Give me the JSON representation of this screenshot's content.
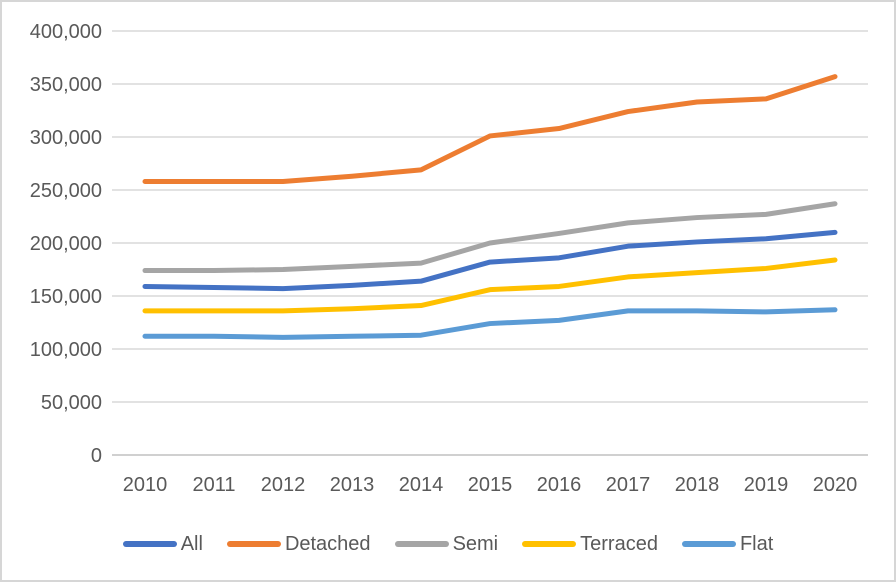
{
  "chart_data": {
    "type": "line",
    "title": "",
    "xlabel": "",
    "ylabel": "",
    "x_labels": [
      "2010",
      "2011",
      "2012",
      "2013",
      "2014",
      "2015",
      "2016",
      "2017",
      "2018",
      "2019",
      "2020"
    ],
    "series": [
      {
        "name": "All",
        "color": "#4472C4",
        "values": [
          159000,
          158000,
          157000,
          160000,
          164000,
          182000,
          186000,
          197000,
          201000,
          204000,
          210000
        ]
      },
      {
        "name": "Detached",
        "color": "#ED7D31",
        "values": [
          258000,
          258000,
          258000,
          263000,
          269000,
          301000,
          308000,
          324000,
          333000,
          336000,
          357000
        ]
      },
      {
        "name": "Semi",
        "color": "#A5A5A5",
        "values": [
          174000,
          174000,
          175000,
          178000,
          181000,
          200000,
          209000,
          219000,
          224000,
          227000,
          237000
        ]
      },
      {
        "name": "Terraced",
        "color": "#FFC000",
        "values": [
          136000,
          136000,
          136000,
          138000,
          141000,
          156000,
          159000,
          168000,
          172000,
          176000,
          184000
        ]
      },
      {
        "name": "Flat",
        "color": "#5B9BD5",
        "values": [
          112000,
          112000,
          111000,
          112000,
          113000,
          124000,
          127000,
          136000,
          136000,
          135000,
          137000
        ]
      }
    ],
    "ylim": [
      0,
      400000
    ],
    "ytick_step": 50000,
    "ytick_labels": [
      "0",
      "50,000",
      "100,000",
      "150,000",
      "200,000",
      "250,000",
      "300,000",
      "350,000",
      "400,000"
    ],
    "grid": true,
    "legend_position": "bottom",
    "styles": {
      "gridline_color": "#D9D9D9",
      "zero_line_color": "#C0C0C0",
      "axis_text_color": "#595959",
      "background": "#FFFFFF",
      "frame_border_color": "#D6D6D6"
    }
  }
}
